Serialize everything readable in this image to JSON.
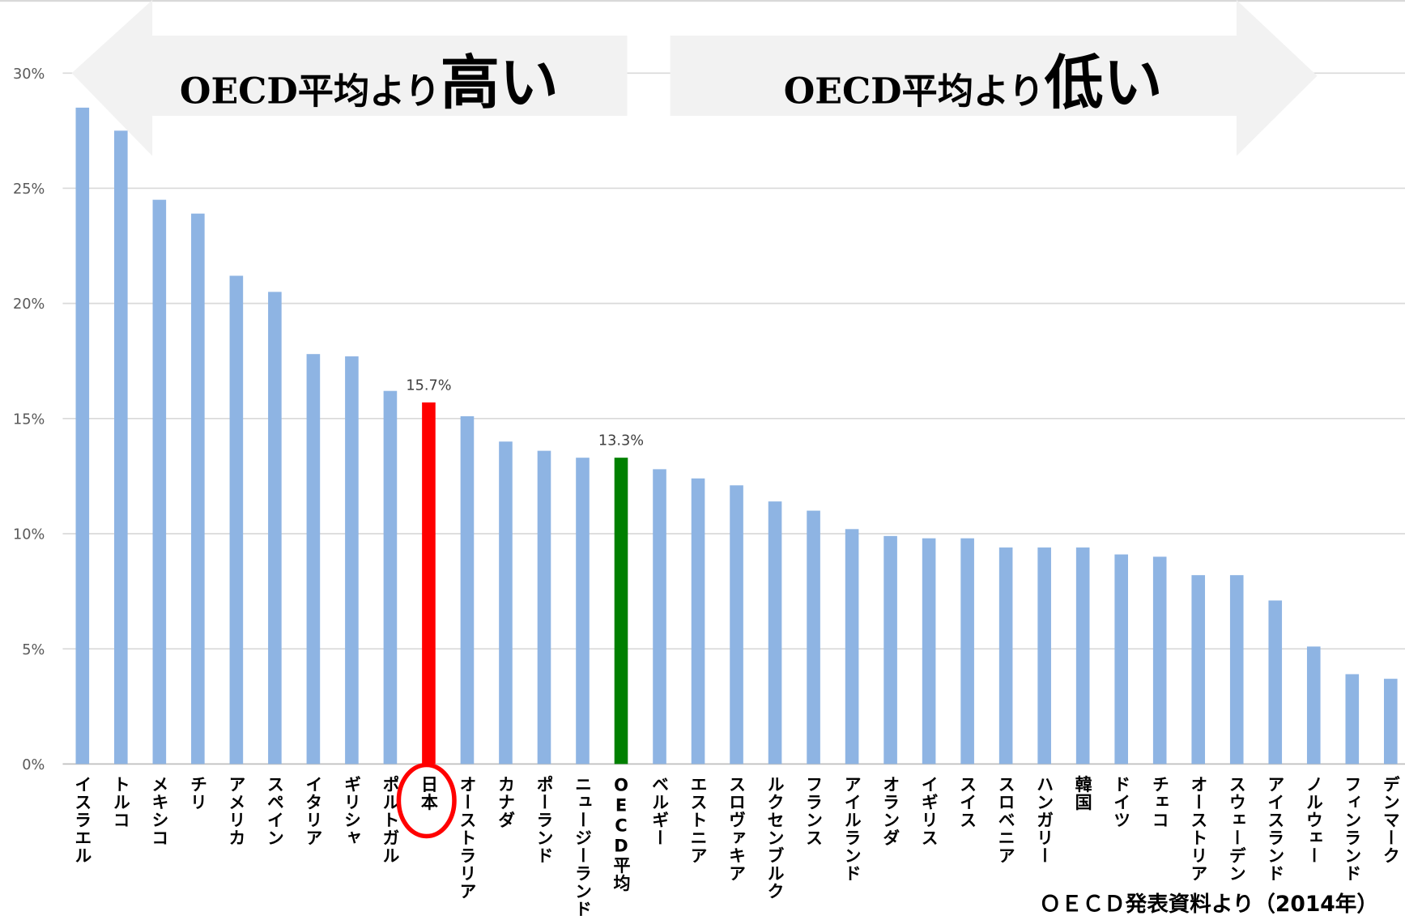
{
  "chart_data": {
    "type": "bar",
    "categories": [
      "イスラエル",
      "トルコ",
      "メキシコ",
      "チリ",
      "アメリカ",
      "スペイン",
      "イタリア",
      "ギリシャ",
      "ポルトガル",
      "日本",
      "オーストラリア",
      "カナダ",
      "ポーランド",
      "ニュージーランド",
      "OECD平均",
      "ベルギー",
      "エストニア",
      "スロヴァキア",
      "ルクセンブルク",
      "フランス",
      "アイルランド",
      "オランダ",
      "イギリス",
      "スイス",
      "スロベニア",
      "ハンガリー",
      "韓国",
      "ドイツ",
      "チェコ",
      "オーストリア",
      "スウェーデン",
      "アイスランド",
      "ノルウェー",
      "フィンランド",
      "デンマーク"
    ],
    "values": [
      28.5,
      27.5,
      24.5,
      23.9,
      21.2,
      20.5,
      17.8,
      17.7,
      16.2,
      15.7,
      15.1,
      14.0,
      13.6,
      13.3,
      13.3,
      12.8,
      12.4,
      12.1,
      11.4,
      11.0,
      10.2,
      9.9,
      9.8,
      9.8,
      9.4,
      9.4,
      9.4,
      9.1,
      9.0,
      8.2,
      8.2,
      7.1,
      5.1,
      3.9,
      3.7
    ],
    "value_labels": [
      null,
      null,
      null,
      null,
      null,
      null,
      null,
      null,
      null,
      "15.7%",
      null,
      null,
      null,
      null,
      "13.3%",
      null,
      null,
      null,
      null,
      null,
      null,
      null,
      null,
      null,
      null,
      null,
      null,
      null,
      null,
      null,
      null,
      null,
      null,
      null,
      null
    ],
    "colors": [
      "#8eb4e3",
      "#8eb4e3",
      "#8eb4e3",
      "#8eb4e3",
      "#8eb4e3",
      "#8eb4e3",
      "#8eb4e3",
      "#8eb4e3",
      "#8eb4e3",
      "#ff0000",
      "#8eb4e3",
      "#8eb4e3",
      "#8eb4e3",
      "#8eb4e3",
      "#008000",
      "#8eb4e3",
      "#8eb4e3",
      "#8eb4e3",
      "#8eb4e3",
      "#8eb4e3",
      "#8eb4e3",
      "#8eb4e3",
      "#8eb4e3",
      "#8eb4e3",
      "#8eb4e3",
      "#8eb4e3",
      "#8eb4e3",
      "#8eb4e3",
      "#8eb4e3",
      "#8eb4e3",
      "#8eb4e3",
      "#8eb4e3",
      "#8eb4e3",
      "#8eb4e3",
      "#8eb4e3"
    ],
    "ylim": [
      0,
      30
    ],
    "yticks": [
      {
        "value": 0,
        "label": "0%"
      },
      {
        "value": 5,
        "label": "5%"
      },
      {
        "value": 10,
        "label": "10%"
      },
      {
        "value": 15,
        "label": "15%"
      },
      {
        "value": 20,
        "label": "20%"
      },
      {
        "value": 25,
        "label": "25%"
      },
      {
        "value": 30,
        "label": "30%"
      }
    ],
    "grid": true,
    "annotations": [
      {
        "text": "OECD平均より",
        "emphasis": "高い"
      },
      {
        "text": "OECD平均より",
        "emphasis": "低い"
      }
    ],
    "source": "ＯＥＣＤ発表資料より（2014年）"
  }
}
